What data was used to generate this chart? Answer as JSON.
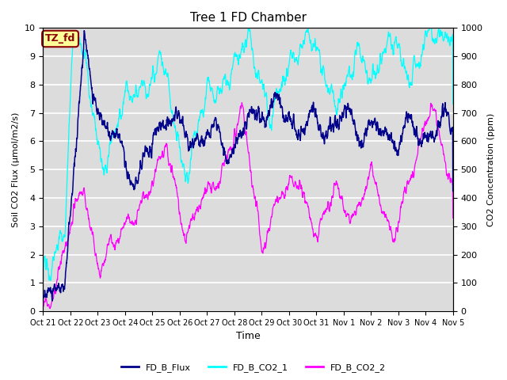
{
  "title": "Tree 1 FD Chamber",
  "xlabel": "Time",
  "ylabel_left": "Soil CO2 Flux (μmol/m2/s)",
  "ylabel_right": "CO2 Concentration (ppm)",
  "ylim_left": [
    0.0,
    10.0
  ],
  "ylim_right": [
    0,
    1000
  ],
  "yticks_left": [
    0.0,
    1.0,
    2.0,
    3.0,
    4.0,
    5.0,
    6.0,
    7.0,
    8.0,
    9.0,
    10.0
  ],
  "yticks_right": [
    0,
    100,
    200,
    300,
    400,
    500,
    600,
    700,
    800,
    900,
    1000
  ],
  "xtick_labels": [
    "Oct 21",
    "Oct 22",
    "Oct 23",
    "Oct 24",
    "Oct 25",
    "Oct 26",
    "Oct 27",
    "Oct 28",
    "Oct 29",
    "Oct 30",
    "Oct 31",
    "Nov 1",
    "Nov 2",
    "Nov 3",
    "Nov 4",
    "Nov 5"
  ],
  "color_flux": "#00008B",
  "color_co2_1": "#00FFFF",
  "color_co2_2": "#FF00FF",
  "legend_labels": [
    "FD_B_Flux",
    "FD_B_CO2_1",
    "FD_B_CO2_2"
  ],
  "annotation_text": "TZ_fd",
  "annotation_bg": "#FFFF99",
  "annotation_border": "#8B0000",
  "background_color": "#DCDCDC",
  "grid_color": "white"
}
